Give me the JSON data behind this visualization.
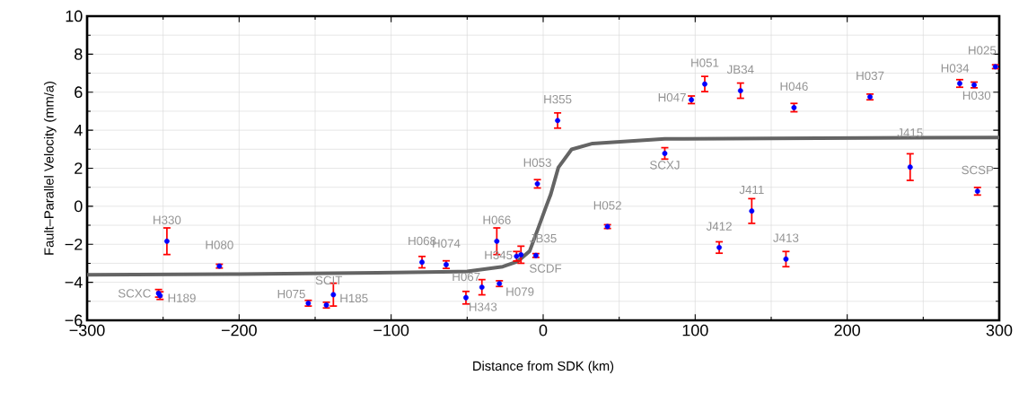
{
  "chart_data": {
    "type": "scatter",
    "xlabel": "Distance from SDK (km)",
    "ylabel": "Fault–Parallel Velocity (mm/a)",
    "xlim": [
      -300,
      300
    ],
    "ylim": [
      -6,
      10
    ],
    "xticks": [
      {
        "value": -300,
        "label": "−300"
      },
      {
        "value": -200,
        "label": "−200"
      },
      {
        "value": -100,
        "label": "−100"
      },
      0,
      100,
      200,
      300
    ],
    "yticks": [
      {
        "value": -6,
        "label": "−6"
      },
      {
        "value": -4,
        "label": "−4"
      },
      {
        "value": -2,
        "label": "−2"
      },
      0,
      2,
      4,
      6,
      8,
      10
    ],
    "grid": true,
    "series": [
      {
        "color": "#0000ff",
        "marker": "circle",
        "x": [
          -253,
          -252,
          -247.5,
          -213,
          -154.5,
          -142.6,
          -138,
          -79.7,
          -63.8,
          -50.8,
          -40.3,
          -28.8,
          -30.5,
          -17.5,
          -14.6,
          -4.8,
          42.3,
          -3.8,
          9.5,
          80,
          137.2,
          97.5,
          106.3,
          129.8,
          165,
          215,
          274,
          283.5,
          297.5,
          241.4,
          285.7,
          115.8,
          159.7
        ],
        "values": [
          -4.58,
          -4.7,
          -1.84,
          -3.15,
          -5.1,
          -5.2,
          -4.65,
          -2.94,
          -3.07,
          -4.81,
          -4.26,
          -4.07,
          -1.84,
          -2.63,
          -2.55,
          -2.59,
          -1.07,
          1.18,
          4.51,
          2.78,
          -0.25,
          5.6,
          6.43,
          6.08,
          5.19,
          5.75,
          6.46,
          6.38,
          7.34,
          2.06,
          0.79,
          -2.17,
          -2.78
        ],
        "errors": [
          0.2,
          0.2,
          0.7,
          0.1,
          0.15,
          0.15,
          0.6,
          0.3,
          0.2,
          0.33,
          0.4,
          0.15,
          0.7,
          0.25,
          0.45,
          0.1,
          0.1,
          0.22,
          0.4,
          0.3,
          0.65,
          0.2,
          0.4,
          0.4,
          0.22,
          0.15,
          0.2,
          0.15,
          0.1,
          0.7,
          0.2,
          0.3,
          0.4
        ]
      },
      {
        "type": "line",
        "color": "#646464",
        "marker": "none",
        "x": [
          -300,
          -200,
          -109,
          -50,
          -26.6,
          -16.7,
          -8.9,
          -3,
          2,
          5,
          10,
          18.7,
          32.5,
          80,
          150,
          300
        ],
        "values": [
          -3.61,
          -3.57,
          -3.5,
          -3.43,
          -3.18,
          -2.9,
          -2.36,
          -1.1,
          0,
          0.63,
          2.04,
          2.99,
          3.3,
          3.54,
          3.57,
          3.62
        ]
      }
    ],
    "annotations": [
      {
        "text": "SCXC",
        "x": -253,
        "y": -4.58
      },
      {
        "text": "H189",
        "x": -252,
        "y": -4.7
      },
      {
        "text": "H330",
        "x": -247.5,
        "y": -1.84
      },
      {
        "text": "H080",
        "x": -213,
        "y": -3.15
      },
      {
        "text": "H075",
        "x": -154.5,
        "y": -5.1
      },
      {
        "text": "SCIT",
        "x": -142.6,
        "y": -5.2
      },
      {
        "text": "H185",
        "x": -138,
        "y": -4.65
      },
      {
        "text": "H068",
        "x": -79.7,
        "y": -2.94
      },
      {
        "text": "H074",
        "x": -63.8,
        "y": -3.07
      },
      {
        "text": "H343",
        "x": -50.8,
        "y": -4.81
      },
      {
        "text": "H067",
        "x": -40.3,
        "y": -4.26
      },
      {
        "text": "H079",
        "x": -28.8,
        "y": -4.07
      },
      {
        "text": "H066",
        "x": -30.5,
        "y": -1.84
      },
      {
        "text": "H345",
        "x": -17.5,
        "y": -2.63
      },
      {
        "text": "JB35",
        "x": -14.6,
        "y": -2.55
      },
      {
        "text": "SCDF",
        "x": -4.8,
        "y": -2.59
      },
      {
        "text": "H052",
        "x": 42.3,
        "y": -1.07
      },
      {
        "text": "H053",
        "x": -3.8,
        "y": 1.18
      },
      {
        "text": "H355",
        "x": 9.5,
        "y": 4.51
      },
      {
        "text": "SCXJ",
        "x": 80,
        "y": 2.78
      },
      {
        "text": "J411",
        "x": 137.2,
        "y": -0.25
      },
      {
        "text": "H047",
        "x": 97.5,
        "y": 5.6
      },
      {
        "text": "H051",
        "x": 106.3,
        "y": 6.43
      },
      {
        "text": "JB34",
        "x": 129.8,
        "y": 6.08
      },
      {
        "text": "H046",
        "x": 165,
        "y": 5.19
      },
      {
        "text": "H037",
        "x": 215,
        "y": 5.75
      },
      {
        "text": "H034",
        "x": 274,
        "y": 6.46
      },
      {
        "text": "H030",
        "x": 283.5,
        "y": 6.38
      },
      {
        "text": "H025",
        "x": 297.5,
        "y": 7.34
      },
      {
        "text": "J415",
        "x": 241.4,
        "y": 2.06
      },
      {
        "text": "SCSP",
        "x": 285.7,
        "y": 0.79
      },
      {
        "text": "J412",
        "x": 115.8,
        "y": -2.17
      },
      {
        "text": "J413",
        "x": 159.7,
        "y": -2.78
      }
    ]
  }
}
